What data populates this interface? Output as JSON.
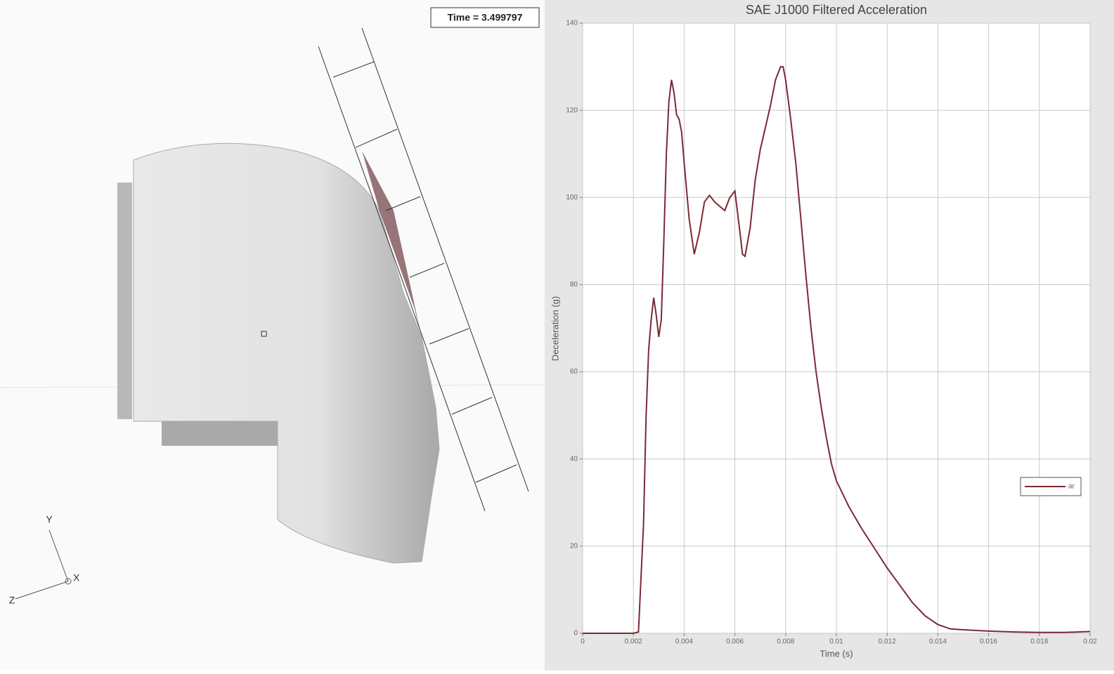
{
  "viewport": {
    "time_label": "Time = 3.499797",
    "axes": {
      "y": "Y",
      "z": "Z",
      "x": "X"
    }
  },
  "chart_data": {
    "type": "line",
    "title": "SAE J1000 Filtered Acceleration",
    "x_label": "Time (s)",
    "y_label": "Deceleration (g)",
    "x": [
      0,
      0.002,
      0.0022,
      0.0024,
      0.0025,
      0.0026,
      0.0027,
      0.0028,
      0.0029,
      0.003,
      0.0031,
      0.0032,
      0.0033,
      0.0034,
      0.0035,
      0.0036,
      0.0037,
      0.0038,
      0.0039,
      0.004,
      0.0042,
      0.0044,
      0.0046,
      0.0048,
      0.005,
      0.0052,
      0.0054,
      0.0056,
      0.0058,
      0.006,
      0.0062,
      0.0063,
      0.0064,
      0.0066,
      0.0068,
      0.007,
      0.0072,
      0.0074,
      0.0076,
      0.0078,
      0.0079,
      0.008,
      0.0082,
      0.0084,
      0.0086,
      0.0088,
      0.009,
      0.0092,
      0.0094,
      0.0096,
      0.0098,
      0.01,
      0.0105,
      0.011,
      0.0115,
      0.012,
      0.0125,
      0.013,
      0.0135,
      0.014,
      0.0145,
      0.015,
      0.016,
      0.017,
      0.018,
      0.019,
      0.02
    ],
    "series": [
      {
        "name": "ar",
        "color": "#7a2a35",
        "values": [
          0,
          0,
          0.3,
          25,
          50,
          65,
          72,
          77,
          73,
          68,
          72,
          90,
          110,
          122,
          127,
          124,
          119,
          118,
          115,
          108,
          95,
          87,
          92,
          99,
          100.5,
          99,
          98,
          97,
          100,
          101.5,
          92,
          87,
          86.5,
          93,
          104,
          111,
          116,
          121,
          127,
          130,
          130,
          127,
          118,
          108,
          95,
          82,
          70,
          60,
          52,
          45,
          39,
          35,
          29,
          24,
          19.5,
          15,
          11,
          7,
          4,
          2,
          1,
          0.8,
          0.5,
          0.3,
          0.2,
          0.2,
          0.4
        ]
      }
    ],
    "xlim": [
      0,
      0.02
    ],
    "xticks": [
      0,
      0.002,
      0.004,
      0.006,
      0.008,
      0.01,
      0.012,
      0.014,
      0.016,
      0.018,
      0.02
    ],
    "ylim": [
      0,
      140
    ],
    "yticks": [
      0,
      20,
      40,
      60,
      80,
      100,
      120,
      140
    ],
    "grid": true,
    "legend": "right"
  }
}
